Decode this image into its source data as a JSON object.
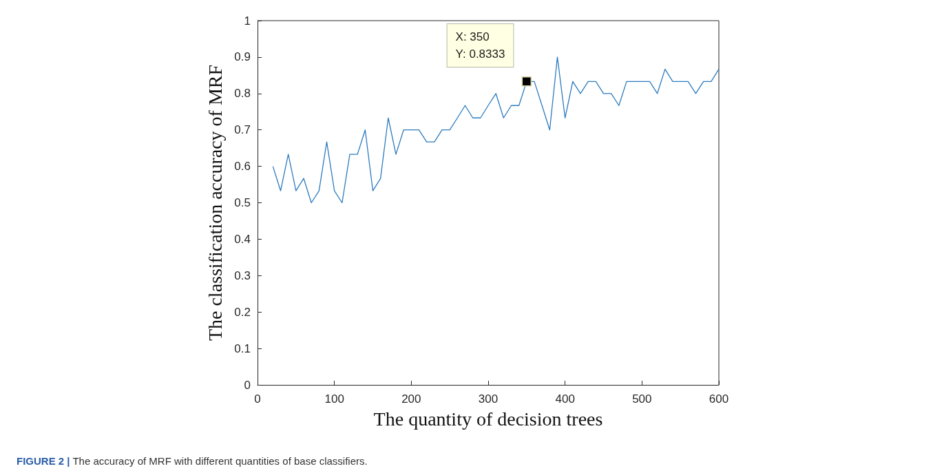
{
  "chart_data": {
    "type": "line",
    "xlabel": "The quantity of decision trees",
    "ylabel": "The classification accuracy of MRF",
    "x": [
      20,
      30,
      40,
      50,
      60,
      70,
      80,
      90,
      100,
      110,
      120,
      130,
      140,
      150,
      160,
      170,
      180,
      190,
      200,
      210,
      220,
      230,
      240,
      250,
      260,
      270,
      280,
      290,
      300,
      310,
      320,
      330,
      340,
      350,
      360,
      370,
      380,
      390,
      400,
      410,
      420,
      430,
      440,
      450,
      460,
      470,
      480,
      490,
      500,
      510,
      520,
      530,
      540,
      550,
      560,
      570,
      580,
      590,
      600
    ],
    "series": [
      {
        "color": "#2b7bbf",
        "values": [
          0.6,
          0.533,
          0.633,
          0.533,
          0.567,
          0.5,
          0.533,
          0.667,
          0.533,
          0.5,
          0.633,
          0.633,
          0.7,
          0.533,
          0.567,
          0.733,
          0.633,
          0.7,
          0.7,
          0.7,
          0.667,
          0.667,
          0.7,
          0.7,
          0.733,
          0.767,
          0.733,
          0.733,
          0.767,
          0.8,
          0.733,
          0.767,
          0.767,
          0.833,
          0.833,
          0.767,
          0.7,
          0.9,
          0.733,
          0.833,
          0.8,
          0.833,
          0.833,
          0.8,
          0.8,
          0.767,
          0.833,
          0.833,
          0.833,
          0.833,
          0.8,
          0.867,
          0.833,
          0.833,
          0.833,
          0.8,
          0.833,
          0.833,
          0.867
        ]
      }
    ],
    "xlim": [
      0,
      600
    ],
    "xticks": [
      0,
      100,
      200,
      300,
      400,
      500,
      600
    ],
    "ylim": [
      0,
      1
    ],
    "yticks": [
      0,
      0.1,
      0.2,
      0.3,
      0.4,
      0.5,
      0.6,
      0.7,
      0.8,
      0.9,
      1
    ],
    "grid": false,
    "marker": "none",
    "line_style": "solid",
    "annotations": [
      {
        "text": "X: 350\nY: 0.8333",
        "x": 350,
        "y": 0.8333
      },
      "FIGURE 2 | The accuracy of MRF with different quantities of base classifiers."
    ]
  }
}
